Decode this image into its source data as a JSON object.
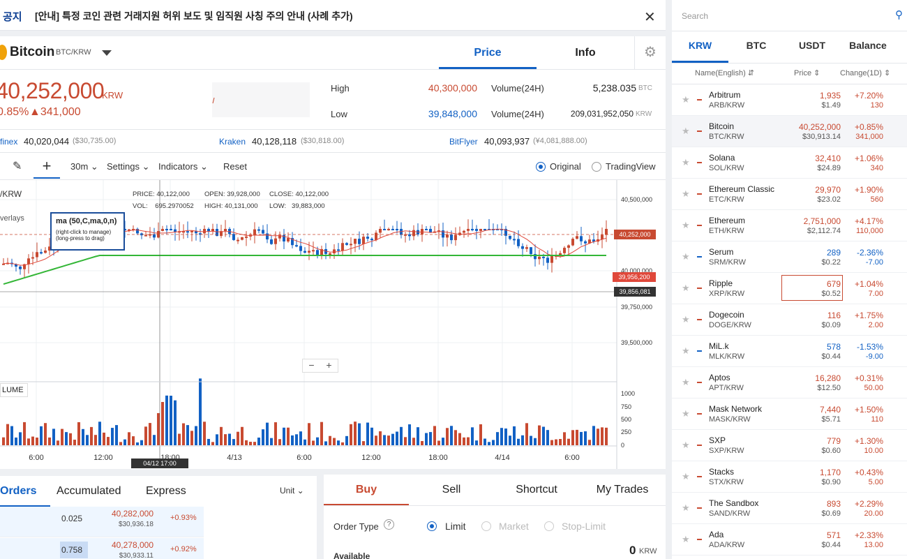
{
  "notice": {
    "label": "공지",
    "text": "[안내] 특정 코인 관련 거래지원 허위 보도 및 임직원 사칭 주의 안내 (사례 추가)"
  },
  "header": {
    "coin_name": "Bitcoin",
    "pair": "BTC/KRW",
    "tab_price": "Price",
    "tab_info": "Info"
  },
  "ticker": {
    "price": "40,252,000",
    "currency": "KRW",
    "change_pct": "0.85%",
    "change_amt": "▲341,000",
    "high_label": "High",
    "high": "40,300,000",
    "low_label": "Low",
    "low": "39,848,000",
    "vol_label_1": "Volume(24H)",
    "vol_1": "5,238.035",
    "vol_1_unit": "BTC",
    "vol_label_2": "Volume(24H)",
    "vol_2": "209,031,952,050",
    "vol_2_unit": "KRW"
  },
  "exchanges": [
    {
      "name": "finex",
      "price": "40,020,044",
      "usd": "($30,735.00)"
    },
    {
      "name": "Kraken",
      "price": "40,128,118",
      "usd": "($30,818.00)"
    },
    {
      "name": "BitFlyer",
      "price": "40,093,937",
      "usd": "(¥4,081,888.00)"
    }
  ],
  "toolbar": {
    "interval": "30m",
    "settings": "Settings",
    "indicators": "Indicators",
    "reset": "Reset",
    "opt_original": "Original",
    "opt_tradingview": "TradingView"
  },
  "chart_info": {
    "pair": "/KRW",
    "overlays": "verlays",
    "price_label": "PRICE:",
    "price": "40,122,000",
    "vol_label": "VOL:",
    "vol": "695.2970052",
    "open_label": "OPEN:",
    "open": "39,928,000",
    "high_label": "HIGH:",
    "high": "40,131,000",
    "close_label": "CLOSE:",
    "close": "40,122,000",
    "low_label": "LOW:",
    "low": "39,883,000",
    "ma_title": "ma (50,C,ma,0,n)",
    "ma_hint1": "(right-click to manage)",
    "ma_hint2": "(long-press to drag)",
    "volume_label": "LUME",
    "crosshair_time": "04/12 17:00",
    "tag_last": "40,252,000",
    "tag_ma1": "39,956,200",
    "tag_ma2": "39,856,081"
  },
  "chart_data": {
    "type": "candlestick",
    "price_axis_ticks": [
      "40,500,000",
      "40,000,000",
      "39,750,000",
      "39,500,000"
    ],
    "volume_axis_ticks": [
      "1000",
      "750",
      "500",
      "250",
      "0"
    ],
    "time_axis_ticks": [
      "6:00",
      "12:00",
      "18:00",
      "4/13",
      "6:00",
      "12:00",
      "18:00",
      "4/14",
      "6:00"
    ],
    "last_price": 40252000
  },
  "lower": {
    "tab_orders": "Orders",
    "tab_accumulated": "Accumulated",
    "tab_express": "Express",
    "unit": "Unit",
    "rows": [
      {
        "qty": "0.025",
        "price": "40,282,000",
        "usd": "$30,936.18",
        "pct": "+0.93%"
      },
      {
        "qty": "0.758",
        "price": "40,278,000",
        "usd": "$30,933.11",
        "pct": "+0.92%"
      }
    ],
    "trade_tabs": [
      "Buy",
      "Sell",
      "Shortcut",
      "My Trades"
    ],
    "order_type": "Order Type",
    "opt_limit": "Limit",
    "opt_market": "Market",
    "opt_stop": "Stop-Limit",
    "available": "Available",
    "available_val": "0",
    "available_unit": "KRW"
  },
  "sidebar": {
    "search_placeholder": "Search",
    "tabs": [
      "KRW",
      "BTC",
      "USDT",
      "Balance"
    ],
    "col_name": "Name(English) ⇵",
    "col_price": "Price ⇕",
    "col_change": "Change(1D) ⇕",
    "coins": [
      {
        "name": "Arbitrum",
        "pair": "ARB/KRW",
        "price": "1,935",
        "usd": "$1.49",
        "pct": "+7.20%",
        "amt": "130",
        "dir": "up"
      },
      {
        "name": "Bitcoin",
        "pair": "BTC/KRW",
        "price": "40,252,000",
        "usd": "$30,913.14",
        "pct": "+0.85%",
        "amt": "341,000",
        "dir": "up"
      },
      {
        "name": "Solana",
        "pair": "SOL/KRW",
        "price": "32,410",
        "usd": "$24.89",
        "pct": "+1.06%",
        "amt": "340",
        "dir": "up"
      },
      {
        "name": "Ethereum Classic",
        "pair": "ETC/KRW",
        "price": "29,970",
        "usd": "$23.02",
        "pct": "+1.90%",
        "amt": "560",
        "dir": "up"
      },
      {
        "name": "Ethereum",
        "pair": "ETH/KRW",
        "price": "2,751,000",
        "usd": "$2,112.74",
        "pct": "+4.17%",
        "amt": "110,000",
        "dir": "up"
      },
      {
        "name": "Serum",
        "pair": "SRM/KRW",
        "price": "289",
        "usd": "$0.22",
        "pct": "-2.36%",
        "amt": "-7.00",
        "dir": "down"
      },
      {
        "name": "Ripple",
        "pair": "XRP/KRW",
        "price": "679",
        "usd": "$0.52",
        "pct": "+1.04%",
        "amt": "7.00",
        "dir": "up"
      },
      {
        "name": "Dogecoin",
        "pair": "DOGE/KRW",
        "price": "116",
        "usd": "$0.09",
        "pct": "+1.75%",
        "amt": "2.00",
        "dir": "up"
      },
      {
        "name": "MiL.k",
        "pair": "MLK/KRW",
        "price": "578",
        "usd": "$0.44",
        "pct": "-1.53%",
        "amt": "-9.00",
        "dir": "down"
      },
      {
        "name": "Aptos",
        "pair": "APT/KRW",
        "price": "16,280",
        "usd": "$12.50",
        "pct": "+0.31%",
        "amt": "50.00",
        "dir": "up"
      },
      {
        "name": "Mask Network",
        "pair": "MASK/KRW",
        "price": "7,440",
        "usd": "$5.71",
        "pct": "+1.50%",
        "amt": "110",
        "dir": "up"
      },
      {
        "name": "SXP",
        "pair": "SXP/KRW",
        "price": "779",
        "usd": "$0.60",
        "pct": "+1.30%",
        "amt": "10.00",
        "dir": "up"
      },
      {
        "name": "Stacks",
        "pair": "STX/KRW",
        "price": "1,170",
        "usd": "$0.90",
        "pct": "+0.43%",
        "amt": "5.00",
        "dir": "up"
      },
      {
        "name": "The Sandbox",
        "pair": "SAND/KRW",
        "price": "893",
        "usd": "$0.69",
        "pct": "+2.29%",
        "amt": "20.00",
        "dir": "up"
      },
      {
        "name": "Ada",
        "pair": "ADA/KRW",
        "price": "571",
        "usd": "$0.44",
        "pct": "+2.33%",
        "amt": "13.00",
        "dir": "up"
      }
    ]
  },
  "colors": {
    "up": "#c84a31",
    "down": "#1261c4",
    "ma_short": "#e0483a",
    "ma_long": "#33b636"
  }
}
